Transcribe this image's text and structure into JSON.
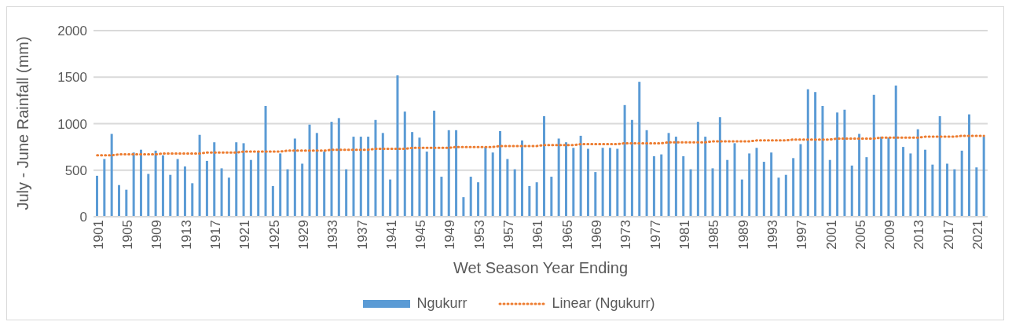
{
  "chart_data": {
    "type": "bar",
    "xlabel": "Wet Season Year Ending",
    "ylabel": "July - June Rainfall (mm)",
    "categories": [
      "1901",
      null,
      null,
      null,
      "1905",
      null,
      null,
      null,
      "1909",
      null,
      null,
      null,
      "1913",
      null,
      null,
      null,
      "1917",
      null,
      null,
      null,
      "1921",
      null,
      null,
      null,
      "1925",
      null,
      null,
      null,
      "1929",
      null,
      null,
      null,
      "1933",
      null,
      null,
      null,
      "1937",
      null,
      null,
      null,
      "1941",
      null,
      null,
      null,
      "1945",
      null,
      null,
      null,
      "1949",
      null,
      null,
      null,
      "1953",
      null,
      null,
      null,
      "1957",
      null,
      null,
      null,
      "1961",
      null,
      null,
      null,
      "1965",
      null,
      null,
      null,
      "1969",
      null,
      null,
      null,
      "1973",
      null,
      null,
      null,
      "1977",
      null,
      null,
      null,
      "1981",
      null,
      null,
      null,
      "1985",
      null,
      null,
      null,
      "1989",
      null,
      null,
      null,
      "1993",
      null,
      null,
      null,
      "1997",
      null,
      null,
      null,
      "2001",
      null,
      null,
      null,
      "2005",
      null,
      null,
      null,
      "2009",
      null,
      null,
      null,
      "2013",
      null,
      null,
      null,
      "2017",
      null,
      null,
      null,
      "2021",
      null
    ],
    "series": [
      {
        "name": "Ngukurr",
        "color": "#5b9bd5",
        "values": [
          440,
          620,
          890,
          340,
          290,
          690,
          720,
          460,
          710,
          660,
          450,
          620,
          540,
          360,
          880,
          600,
          800,
          520,
          420,
          800,
          790,
          610,
          700,
          1190,
          330,
          680,
          510,
          840,
          570,
          990,
          900,
          700,
          1020,
          1060,
          510,
          860,
          860,
          860,
          1040,
          900,
          400,
          1520,
          1130,
          910,
          850,
          700,
          1140,
          430,
          930,
          930,
          210,
          430,
          370,
          750,
          690,
          920,
          620,
          510,
          820,
          330,
          370,
          1080,
          430,
          840,
          800,
          740,
          870,
          730,
          480,
          740,
          740,
          730,
          1200,
          1040,
          1450,
          930,
          650,
          670,
          900,
          860,
          650,
          510,
          1020,
          860,
          520,
          1070,
          610,
          790,
          400,
          680,
          740,
          590,
          690,
          420,
          450,
          630,
          780,
          1370,
          1340,
          1190,
          610,
          1120,
          1150,
          550,
          890,
          640,
          1310,
          860,
          850,
          1410,
          750,
          680,
          940,
          720,
          560,
          1080,
          570,
          510,
          710,
          1100,
          530,
          860
        ]
      },
      {
        "name": "Linear (Ngukurr)",
        "type": "line",
        "color": "#ed7d31",
        "line_style": "dotted",
        "marker": "none",
        "values": [
          660,
          660,
          660,
          670,
          670,
          670,
          670,
          670,
          670,
          680,
          680,
          680,
          680,
          680,
          680,
          690,
          690,
          690,
          690,
          690,
          700,
          700,
          700,
          700,
          700,
          700,
          710,
          710,
          710,
          710,
          710,
          710,
          720,
          720,
          720,
          720,
          720,
          720,
          730,
          730,
          730,
          730,
          730,
          740,
          740,
          740,
          740,
          740,
          740,
          750,
          750,
          750,
          750,
          750,
          750,
          760,
          760,
          760,
          760,
          760,
          760,
          770,
          770,
          770,
          770,
          770,
          780,
          780,
          780,
          780,
          780,
          780,
          790,
          790,
          790,
          790,
          790,
          790,
          800,
          800,
          800,
          800,
          800,
          800,
          810,
          810,
          810,
          810,
          810,
          810,
          820,
          820,
          820,
          820,
          820,
          830,
          830,
          830,
          830,
          830,
          830,
          840,
          840,
          840,
          840,
          840,
          840,
          850,
          850,
          850,
          850,
          850,
          850,
          860,
          860,
          860,
          860,
          860,
          870,
          870,
          870,
          870
        ]
      }
    ],
    "ylim": [
      0,
      2000
    ],
    "yticks": [
      0,
      500,
      1000,
      1500,
      2000
    ],
    "grid": "y",
    "legend": "bottom"
  }
}
